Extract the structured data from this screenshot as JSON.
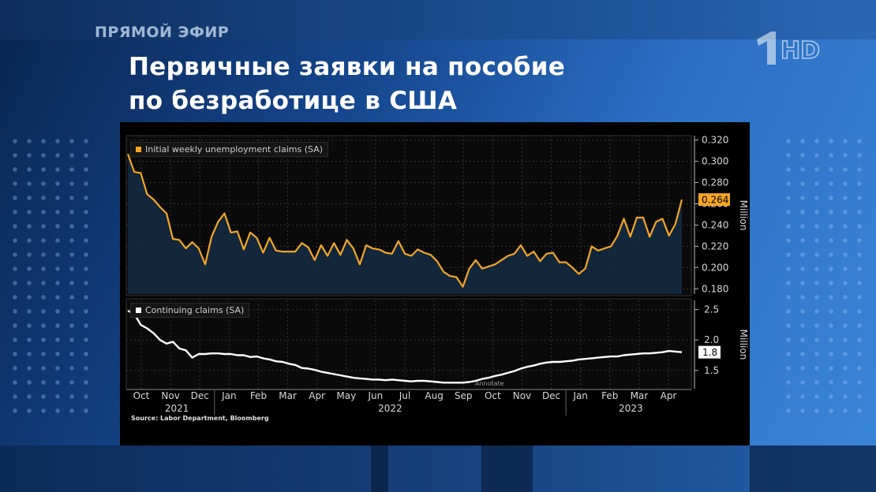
{
  "broadcast": {
    "live_label": "ПРЯМОЙ ЭФИР",
    "headline_line1": "Первичные заявки на пособие",
    "headline_line2": "по безработице в США",
    "channel_logo": "1",
    "hd_label": "HD"
  },
  "chart_data": [
    {
      "type": "area",
      "legend": "Initial weekly unemployment claims (SA)",
      "ylabel": "Million",
      "ylim": [
        0.175,
        0.322
      ],
      "yticks": [
        "0.320",
        "0.300",
        "0.280",
        "0.260",
        "0.240",
        "0.220",
        "0.200",
        "0.180"
      ],
      "last_value_label": "0.264",
      "color": "#f5a623",
      "values": [
        0.307,
        0.29,
        0.289,
        0.269,
        0.264,
        0.257,
        0.251,
        0.227,
        0.226,
        0.218,
        0.224,
        0.218,
        0.203,
        0.229,
        0.243,
        0.251,
        0.233,
        0.234,
        0.217,
        0.233,
        0.228,
        0.214,
        0.228,
        0.216,
        0.215,
        0.215,
        0.215,
        0.223,
        0.219,
        0.207,
        0.221,
        0.211,
        0.223,
        0.212,
        0.226,
        0.218,
        0.203,
        0.221,
        0.218,
        0.217,
        0.214,
        0.213,
        0.225,
        0.213,
        0.211,
        0.217,
        0.214,
        0.212,
        0.206,
        0.196,
        0.192,
        0.191,
        0.182,
        0.199,
        0.207,
        0.199,
        0.201,
        0.203,
        0.207,
        0.211,
        0.213,
        0.221,
        0.211,
        0.215,
        0.206,
        0.213,
        0.214,
        0.205,
        0.205,
        0.2,
        0.194,
        0.199,
        0.22,
        0.216,
        0.218,
        0.22,
        0.23,
        0.246,
        0.229,
        0.247,
        0.247,
        0.229,
        0.243,
        0.246,
        0.23,
        0.241,
        0.264
      ]
    },
    {
      "type": "line",
      "legend": "Continuing claims (SA)",
      "ylabel": "Million",
      "ylim": [
        1.2,
        2.65
      ],
      "yticks": [
        "2.5",
        "2.0",
        "1.5"
      ],
      "last_value_label": "1.8",
      "annotate_label": "Annotate",
      "color": "#ffffff",
      "values": [
        2.48,
        2.43,
        2.25,
        2.19,
        2.11,
        2.0,
        1.94,
        1.97,
        1.86,
        1.83,
        1.71,
        1.77,
        1.77,
        1.78,
        1.78,
        1.77,
        1.77,
        1.75,
        1.75,
        1.72,
        1.73,
        1.7,
        1.68,
        1.65,
        1.64,
        1.61,
        1.59,
        1.54,
        1.53,
        1.51,
        1.48,
        1.46,
        1.44,
        1.42,
        1.4,
        1.38,
        1.37,
        1.36,
        1.35,
        1.35,
        1.34,
        1.35,
        1.34,
        1.33,
        1.32,
        1.33,
        1.33,
        1.32,
        1.31,
        1.3,
        1.3,
        1.3,
        1.3,
        1.31,
        1.33,
        1.36,
        1.38,
        1.41,
        1.43,
        1.46,
        1.49,
        1.53,
        1.56,
        1.58,
        1.61,
        1.63,
        1.64,
        1.64,
        1.65,
        1.66,
        1.68,
        1.69,
        1.7,
        1.71,
        1.72,
        1.73,
        1.73,
        1.75,
        1.76,
        1.77,
        1.78,
        1.78,
        1.79,
        1.8,
        1.82,
        1.81,
        1.8
      ]
    }
  ],
  "x_axis": {
    "months": [
      "Oct",
      "Nov",
      "Dec",
      "Jan",
      "Feb",
      "Mar",
      "Apr",
      "May",
      "Jun",
      "Jul",
      "Aug",
      "Sep",
      "Oct",
      "Nov",
      "Dec",
      "Jan",
      "Feb",
      "Mar",
      "Apr"
    ],
    "years": [
      "2021",
      "2022",
      "2023"
    ]
  },
  "source": "Source: Labor Department, Bloomberg"
}
